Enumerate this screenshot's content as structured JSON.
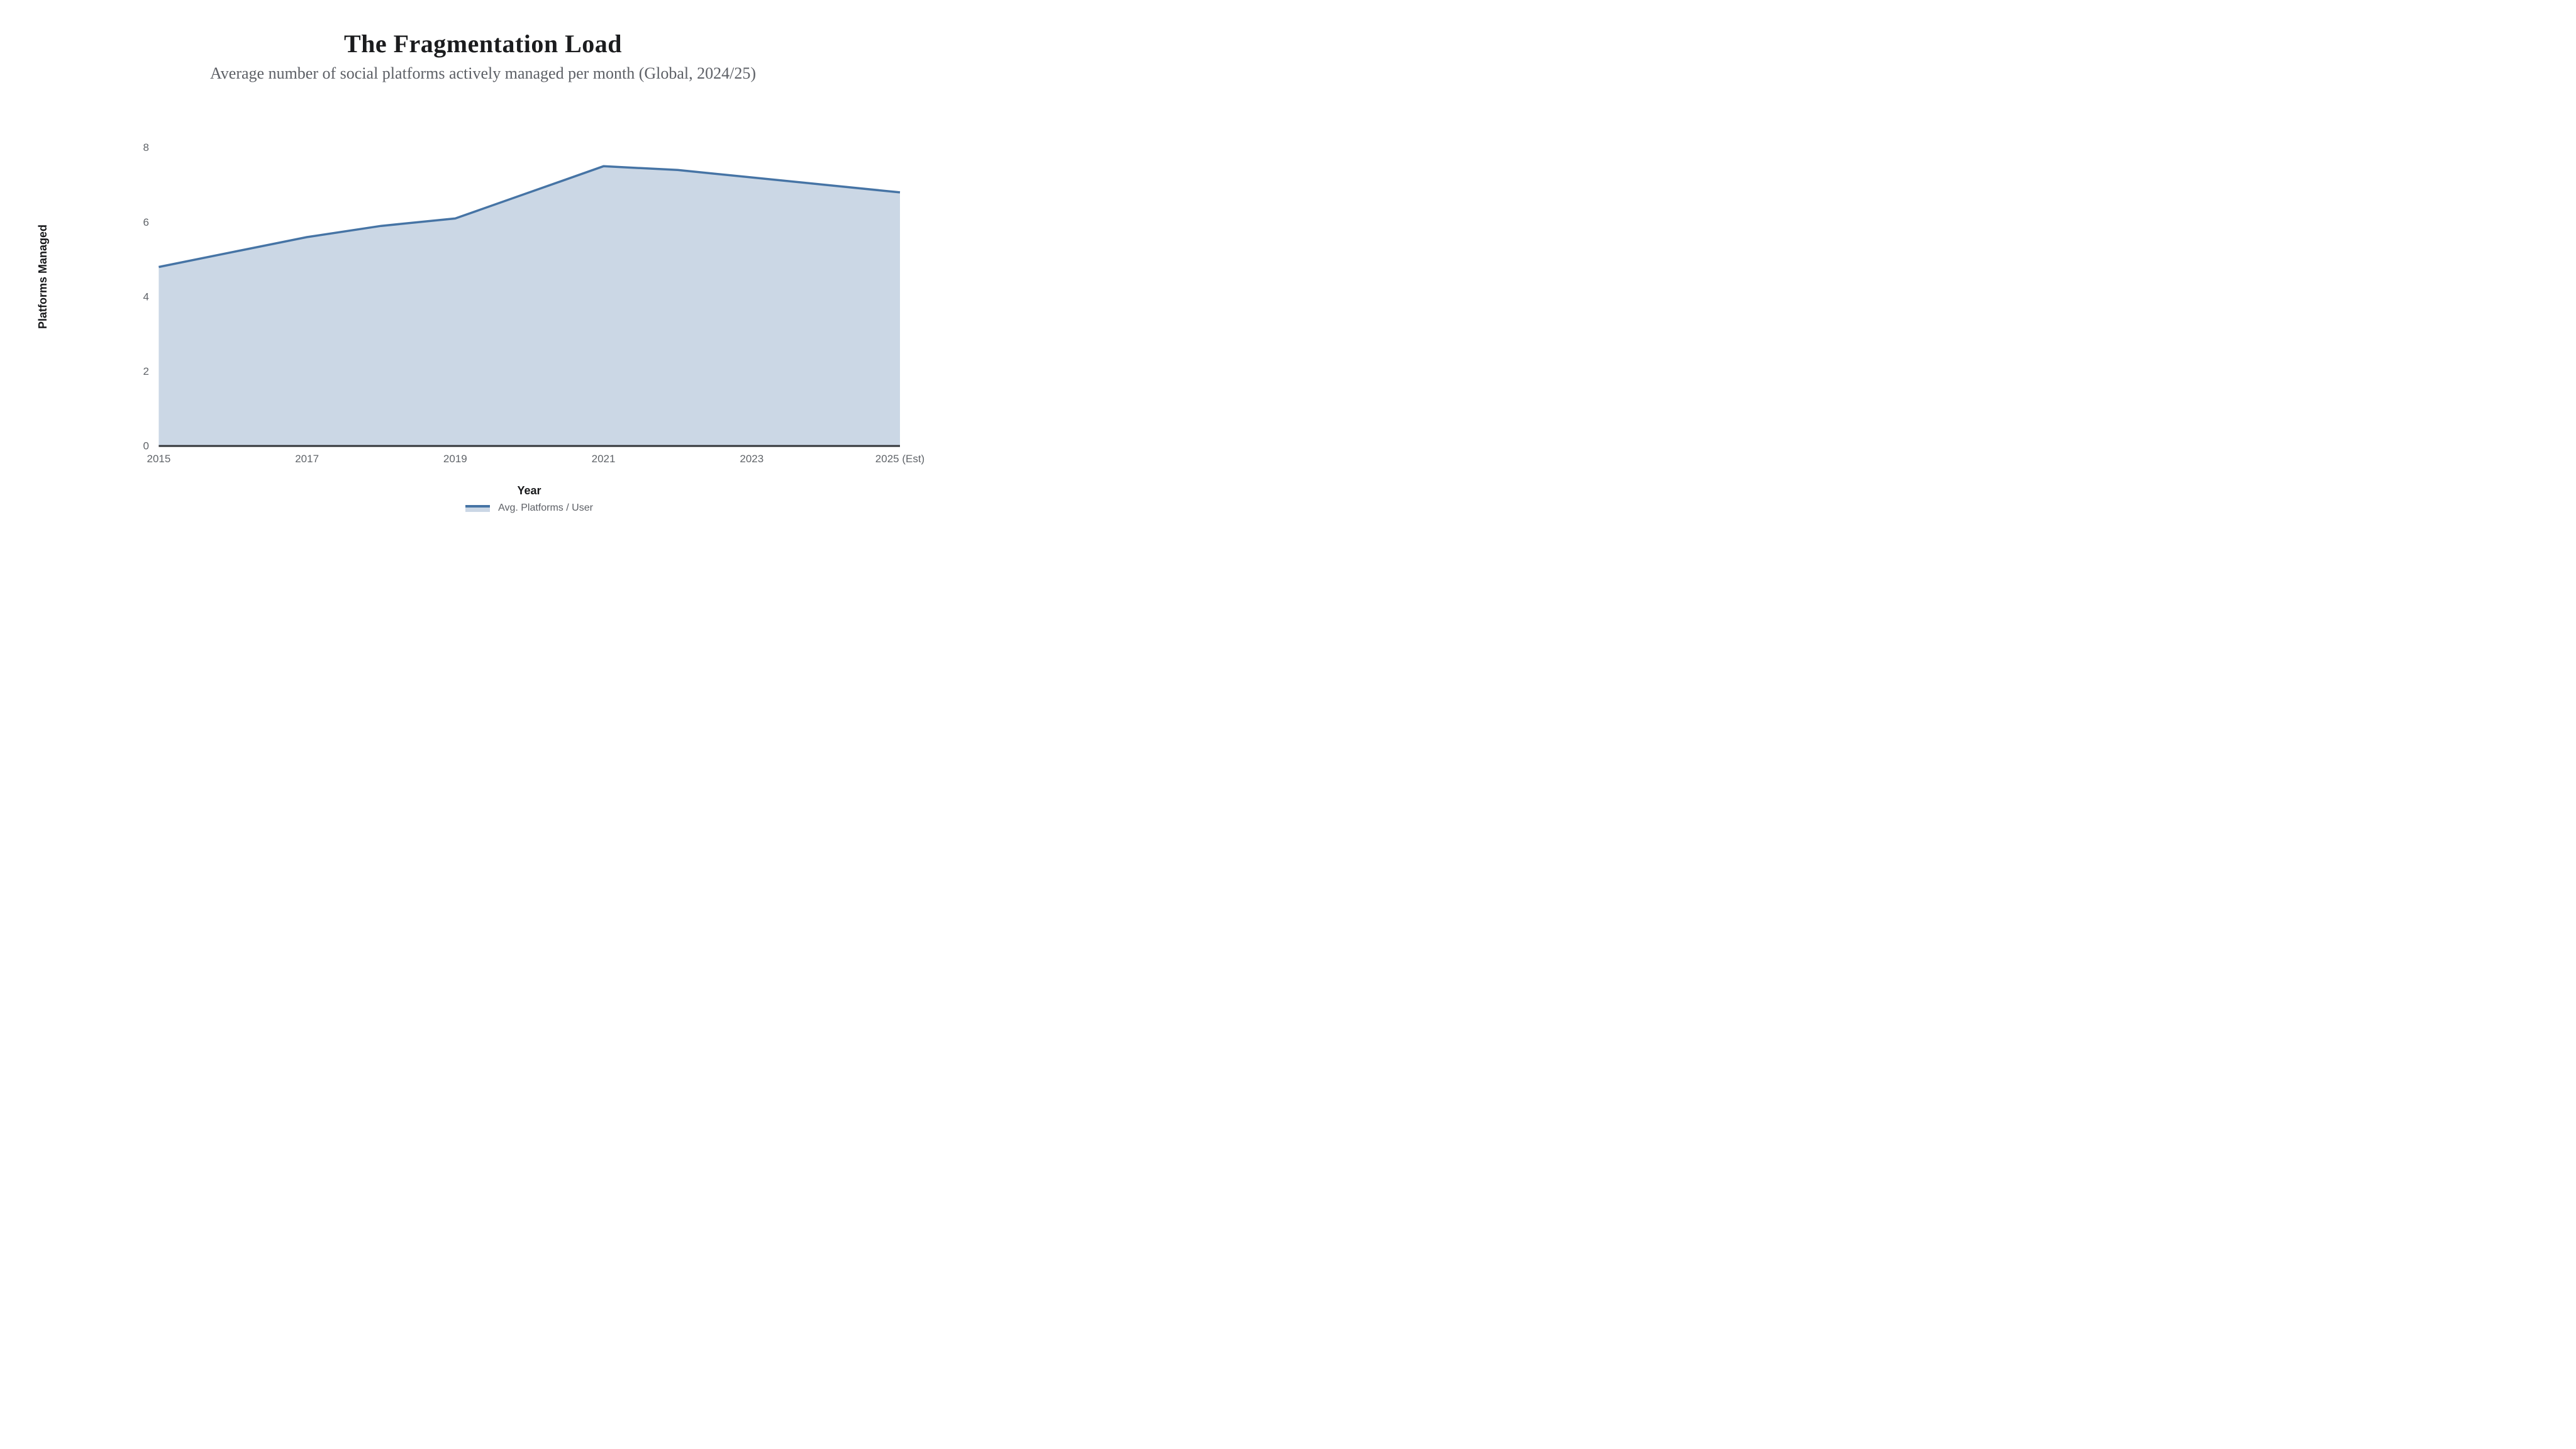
{
  "header": {
    "title": "The Fragmentation Load",
    "subtitle": "Average number of social platforms actively managed per month (Global, 2024/25)"
  },
  "chart_data": {
    "type": "area",
    "title": "The Fragmentation Load",
    "subtitle": "Average number of social platforms actively managed per month (Global, 2024/25)",
    "x": [
      2015,
      2016,
      2017,
      2018,
      2019,
      2020,
      2021,
      2022,
      2023,
      2024,
      2025
    ],
    "series": [
      {
        "name": "Avg. Platforms / User",
        "values": [
          4.8,
          5.2,
          5.6,
          5.9,
          6.1,
          6.8,
          7.5,
          7.4,
          7.2,
          7.0,
          6.8
        ]
      }
    ],
    "xlabel": "Year",
    "ylabel": "Platforms Managed",
    "ylim": [
      0,
      8
    ],
    "yticks": [
      0,
      2,
      4,
      6,
      8
    ],
    "xticks": [
      {
        "year": 2015,
        "label": "2015"
      },
      {
        "year": 2017,
        "label": "2017"
      },
      {
        "year": 2019,
        "label": "2019"
      },
      {
        "year": 2021,
        "label": "2021"
      },
      {
        "year": 2023,
        "label": "2023"
      },
      {
        "year": 2025,
        "label": "2025 (Est)"
      }
    ],
    "grid": false,
    "legend_position": "bottom-center",
    "colors": {
      "line": "#4674a5",
      "fill": "#cbd7e5",
      "axis_line": "#33363a",
      "tick_text": "#606469",
      "title_text": "#1b1c1e",
      "subtitle_text": "#5d6066",
      "legend_text": "#5d6066",
      "background": "#ffffff"
    }
  }
}
